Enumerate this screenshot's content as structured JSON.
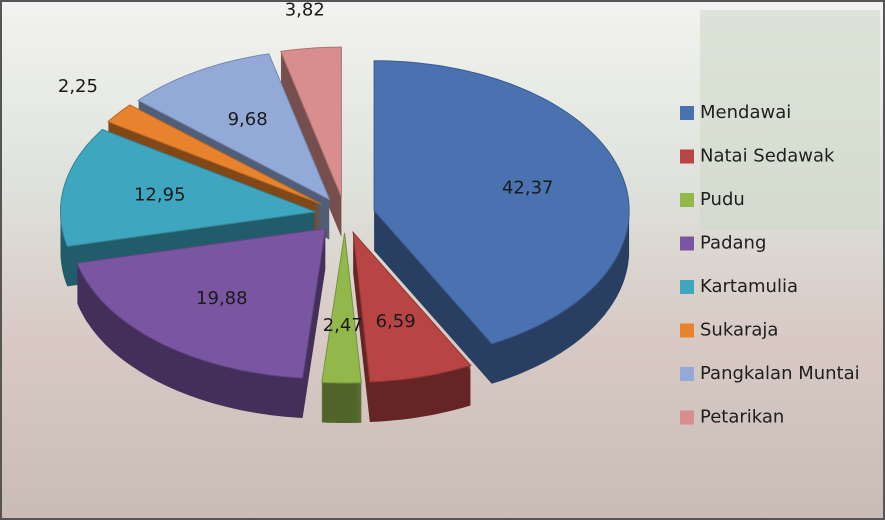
{
  "chart_data": {
    "type": "pie",
    "categories": [
      "Mendawai",
      "Natai Sedawak",
      "Pudu",
      "Padang",
      "Kartamulia",
      "Sukaraja",
      "Pangkalan Muntai",
      "Petarikan"
    ],
    "values": [
      42.37,
      6.59,
      2.47,
      19.88,
      12.95,
      2.25,
      9.68,
      3.82
    ],
    "value_labels": [
      "42,37",
      "6,59",
      "2,47",
      "19,88",
      "12,95",
      "2,25",
      "9,68",
      "3,82"
    ],
    "colors": [
      "#4a72b0",
      "#b84444",
      "#92b84c",
      "#7a56a2",
      "#3ea6be",
      "#e8822c",
      "#93aad8",
      "#d88e8e"
    ],
    "legend": "right"
  }
}
